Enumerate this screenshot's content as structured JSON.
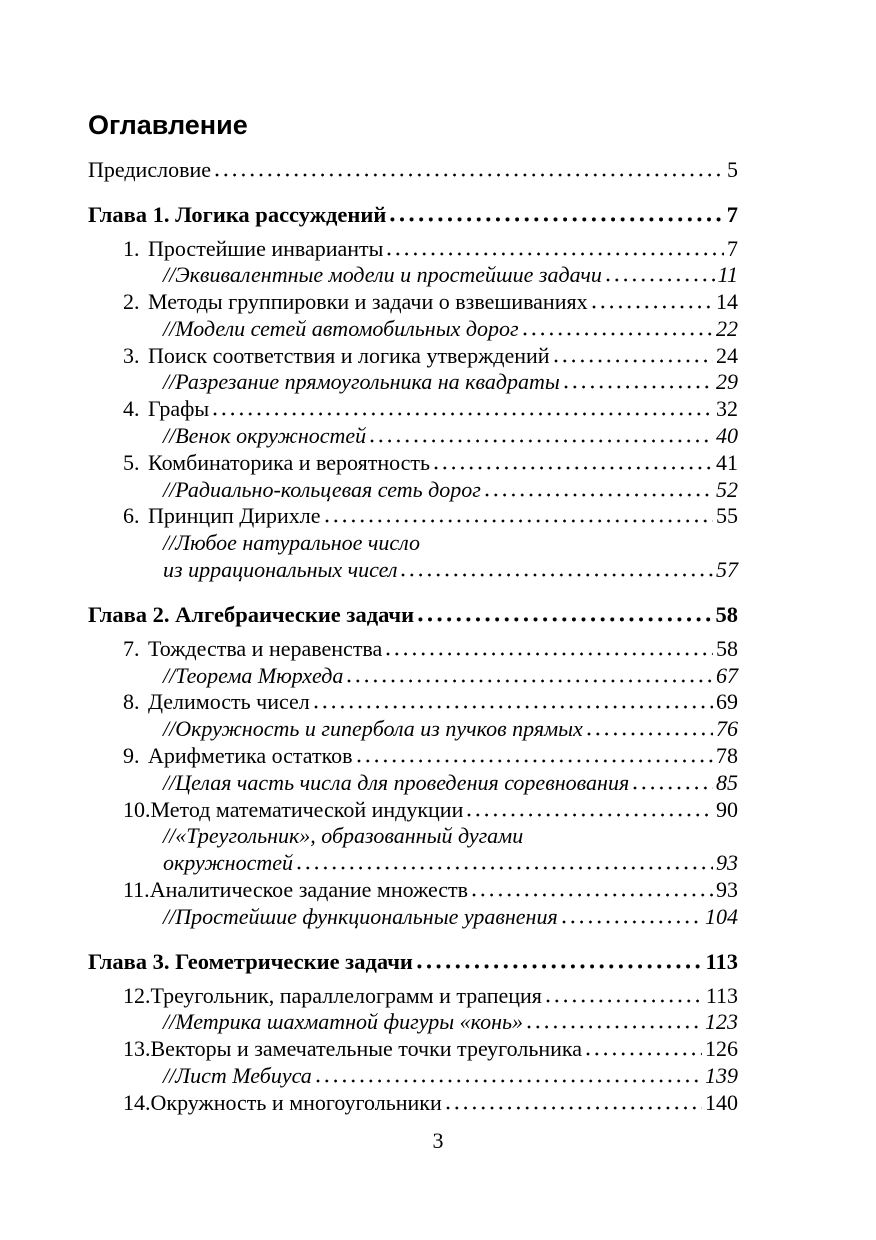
{
  "page": {
    "title": "Оглавление",
    "footer_page_number": "3"
  },
  "toc": {
    "preface": {
      "label": "Предисловие",
      "page": "5"
    },
    "chapters": [
      {
        "title": "Глава 1. Логика рассуждений",
        "page": "7",
        "items": [
          {
            "num": "1.",
            "label": "Простейшие инварианты",
            "page": "7",
            "sub_label": "//Эквивалентные модели и простейшие задачи",
            "sub_page": "11"
          },
          {
            "num": "2.",
            "label": "Методы группировки и задачи о взвешиваниях",
            "page": "14",
            "sub_label": "//Модели сетей автомобильных дорог",
            "sub_page": "22"
          },
          {
            "num": "3.",
            "label": "Поиск соответствия и логика утверждений",
            "page": "24",
            "sub_label": "//Разрезание прямоугольника на квадраты",
            "sub_page": "29"
          },
          {
            "num": "4.",
            "label": "Графы",
            "page": "32",
            "sub_label": "//Венок окружностей",
            "sub_page": "40"
          },
          {
            "num": "5.",
            "label": "Комбинаторика и вероятность",
            "page": "41",
            "sub_label": "//Радиально-кольцевая сеть дорог",
            "sub_page": "52"
          },
          {
            "num": "6.",
            "label": "Принцип Дирихле",
            "page": "55",
            "sub_pre": "//Любое натуральное число",
            "sub_label": "из иррациональных чисел",
            "sub_page": "57"
          }
        ]
      },
      {
        "title": "Глава 2. Алгебраические задачи",
        "page": "58",
        "items": [
          {
            "num": "7.",
            "label": "Тождества и неравенства",
            "page": "58",
            "sub_label": "//Теорема Мюрхеда",
            "sub_page": "67"
          },
          {
            "num": "8.",
            "label": "Делимость чисел",
            "page": "69",
            "sub_label": "//Окружность и гипербола из пучков прямых",
            "sub_page": "76"
          },
          {
            "num": "9.",
            "label": "Арифметика остатков",
            "page": "78",
            "sub_label": "//Целая часть числа для проведения соревнования",
            "sub_page": "85"
          },
          {
            "num": "10.",
            "label": "Метод математической индукции",
            "page": "90",
            "sub_pre": "//«Треугольник», образованный дугами",
            "sub_label": "окружностей",
            "sub_page": "93"
          },
          {
            "num": "11.",
            "label": "Аналитическое задание множеств",
            "page": "93",
            "sub_label": "//Простейшие функциональные уравнения",
            "sub_page": "104"
          }
        ]
      },
      {
        "title": "Глава 3. Геометрические задачи",
        "page": "113",
        "items": [
          {
            "num": "12.",
            "label": "Треугольник, параллелограмм и трапеция",
            "page": "113",
            "sub_label": "//Метрика шахматной фигуры «конь»",
            "sub_page": "123"
          },
          {
            "num": "13.",
            "label": "Векторы и замечательные точки треугольника",
            "page": "126",
            "sub_label": "//Лист Мебиуса",
            "sub_page": "139"
          },
          {
            "num": "14.",
            "label": "Окружность и многоугольники",
            "page": "140"
          }
        ]
      }
    ]
  }
}
